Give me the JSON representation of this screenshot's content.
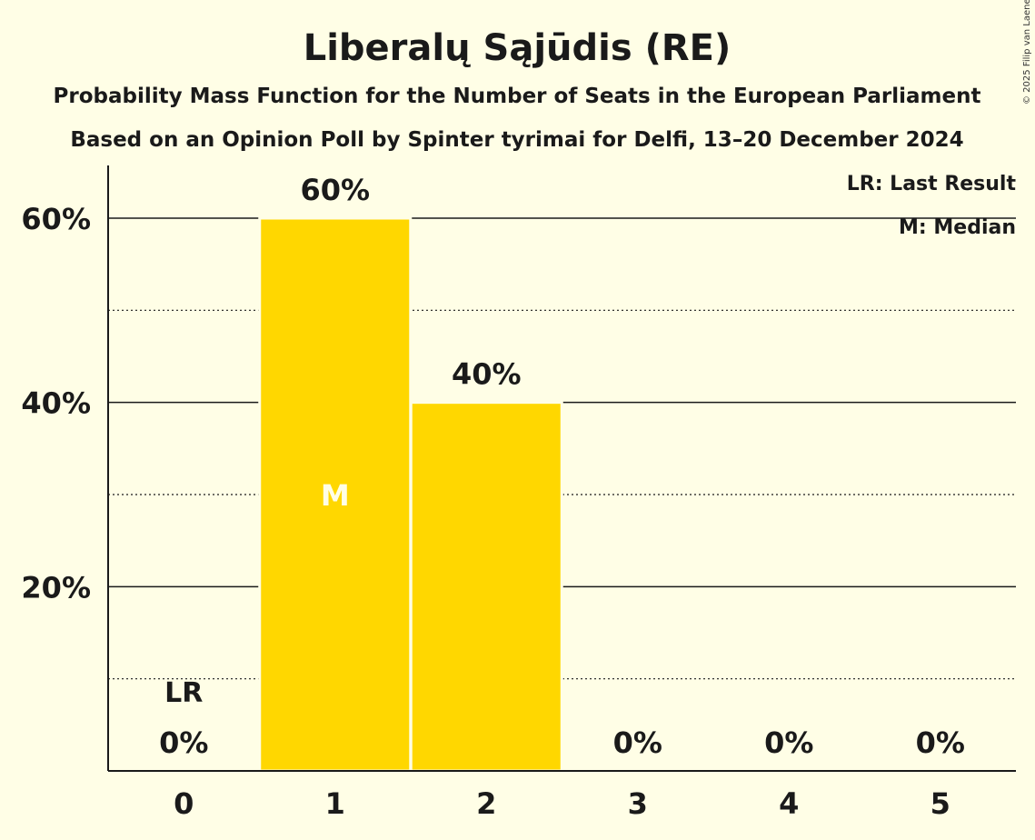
{
  "copyright": "© 2025 Filip van Laenen",
  "colors": {
    "background": "#fffee6",
    "bar": "#ffd700",
    "text": "#1a1a1a"
  },
  "chart_data": {
    "type": "bar",
    "title": "Liberalų Sąjūdis (RE)",
    "subtitle1": "Probability Mass Function for the Number of Seats in the European Parliament",
    "subtitle2": "Based on an Opinion Poll by Spinter tyrimai for Delfi, 13–20 December 2024",
    "categories": [
      "0",
      "1",
      "2",
      "3",
      "4",
      "5"
    ],
    "values": [
      0,
      60,
      40,
      0,
      0,
      0
    ],
    "data_labels": [
      "0%",
      "60%",
      "40%",
      "0%",
      "0%",
      "0%"
    ],
    "ylim": [
      0,
      65
    ],
    "yticks": [
      {
        "v": 20,
        "label": "20%"
      },
      {
        "v": 40,
        "label": "40%"
      },
      {
        "v": 60,
        "label": "60%"
      }
    ],
    "minor_gridlines": [
      10,
      30,
      50
    ],
    "last_result": {
      "category": "0",
      "label": "LR"
    },
    "median": {
      "category": "1",
      "label": "M"
    },
    "legend": [
      "LR: Last Result",
      "M: Median"
    ],
    "legend_position": "top-right"
  }
}
